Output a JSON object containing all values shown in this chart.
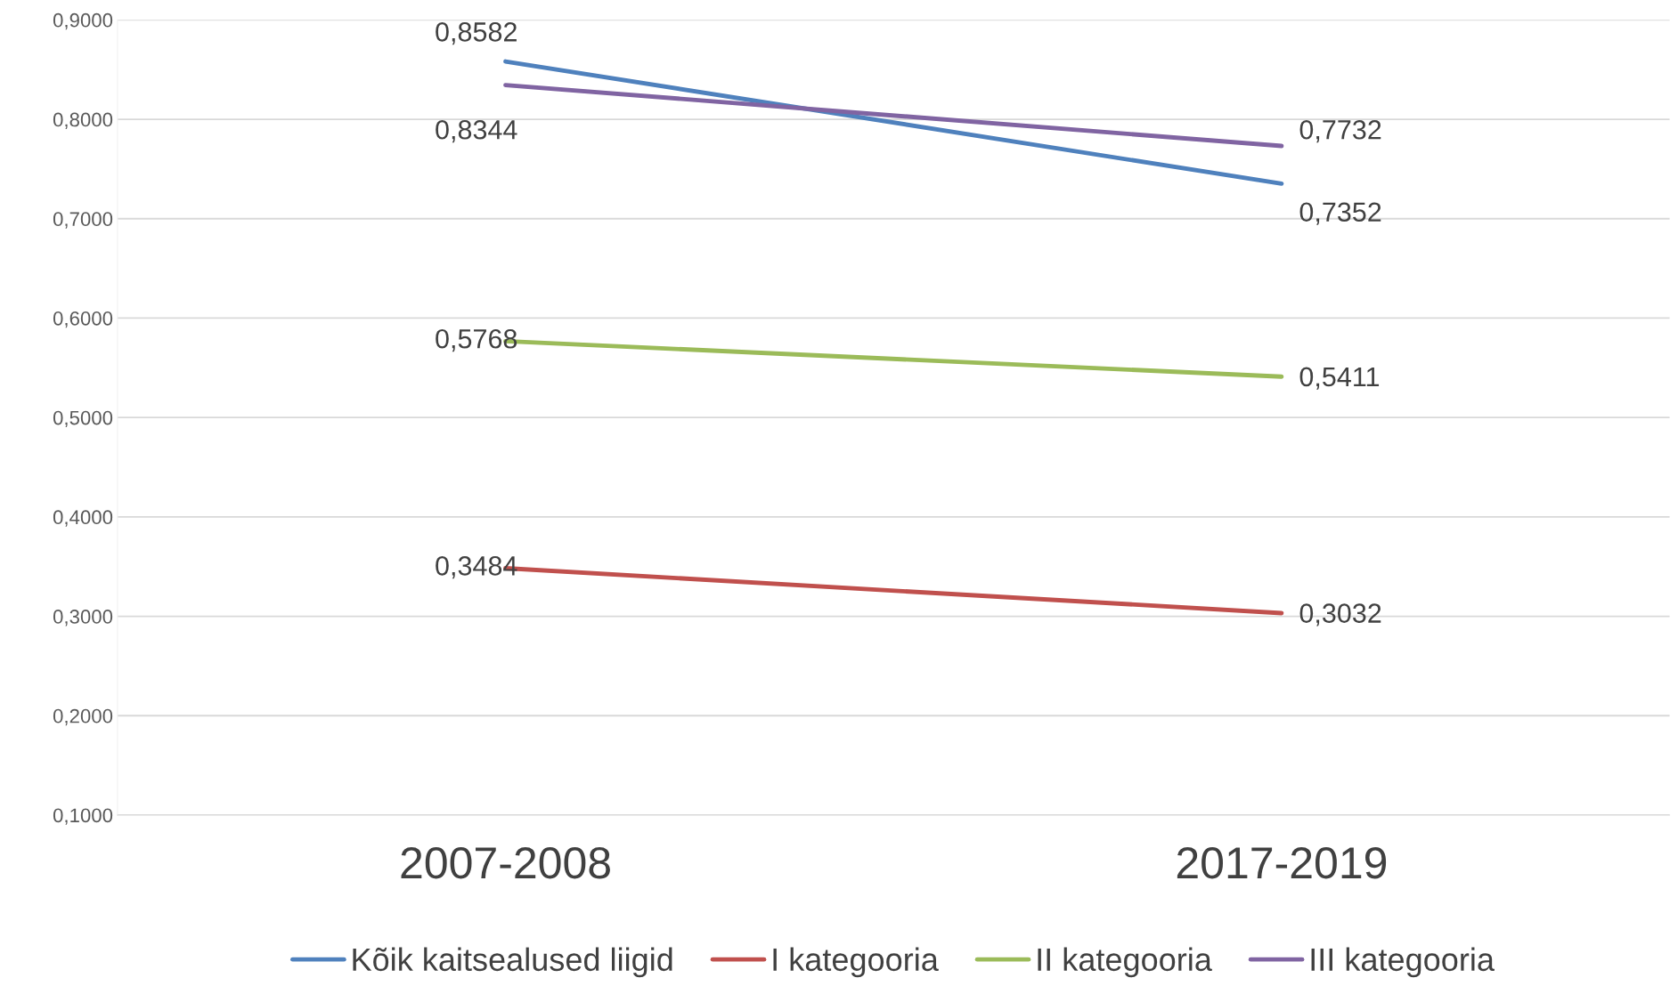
{
  "chart_data": {
    "type": "line",
    "categories": [
      "2007-2008",
      "2017-2019"
    ],
    "series": [
      {
        "name": "Kõik kaitsealused liigid",
        "color": "#4f81bd",
        "values": [
          0.8582,
          0.7352
        ]
      },
      {
        "name": "I kategooria",
        "color": "#c0504d",
        "values": [
          0.3484,
          0.3032
        ]
      },
      {
        "name": "II kategooria",
        "color": "#9bbb59",
        "values": [
          0.5768,
          0.5411
        ]
      },
      {
        "name": "III kategooria",
        "color": "#8064a2",
        "values": [
          0.8344,
          0.7732
        ]
      }
    ],
    "ylim": [
      0.1,
      0.9
    ],
    "yticks": [
      {
        "value": 0.1,
        "label": "0,1000"
      },
      {
        "value": 0.2,
        "label": "0,2000"
      },
      {
        "value": 0.3,
        "label": "0,3000"
      },
      {
        "value": 0.4,
        "label": "0,4000"
      },
      {
        "value": 0.5,
        "label": "0,5000"
      },
      {
        "value": 0.6,
        "label": "0,6000"
      },
      {
        "value": 0.7,
        "label": "0,7000"
      },
      {
        "value": 0.8,
        "label": "0,8000"
      },
      {
        "value": 0.9,
        "label": "0,9000"
      }
    ],
    "value_labels": [
      [
        "0,8582",
        "0,7352"
      ],
      [
        "0,3484",
        "0,3032"
      ],
      [
        "0,5768",
        "0,5411"
      ],
      [
        "0,8344",
        "0,7732"
      ]
    ],
    "grid": "y",
    "legend": "bottom",
    "marker": "none",
    "line_style": "solid"
  }
}
